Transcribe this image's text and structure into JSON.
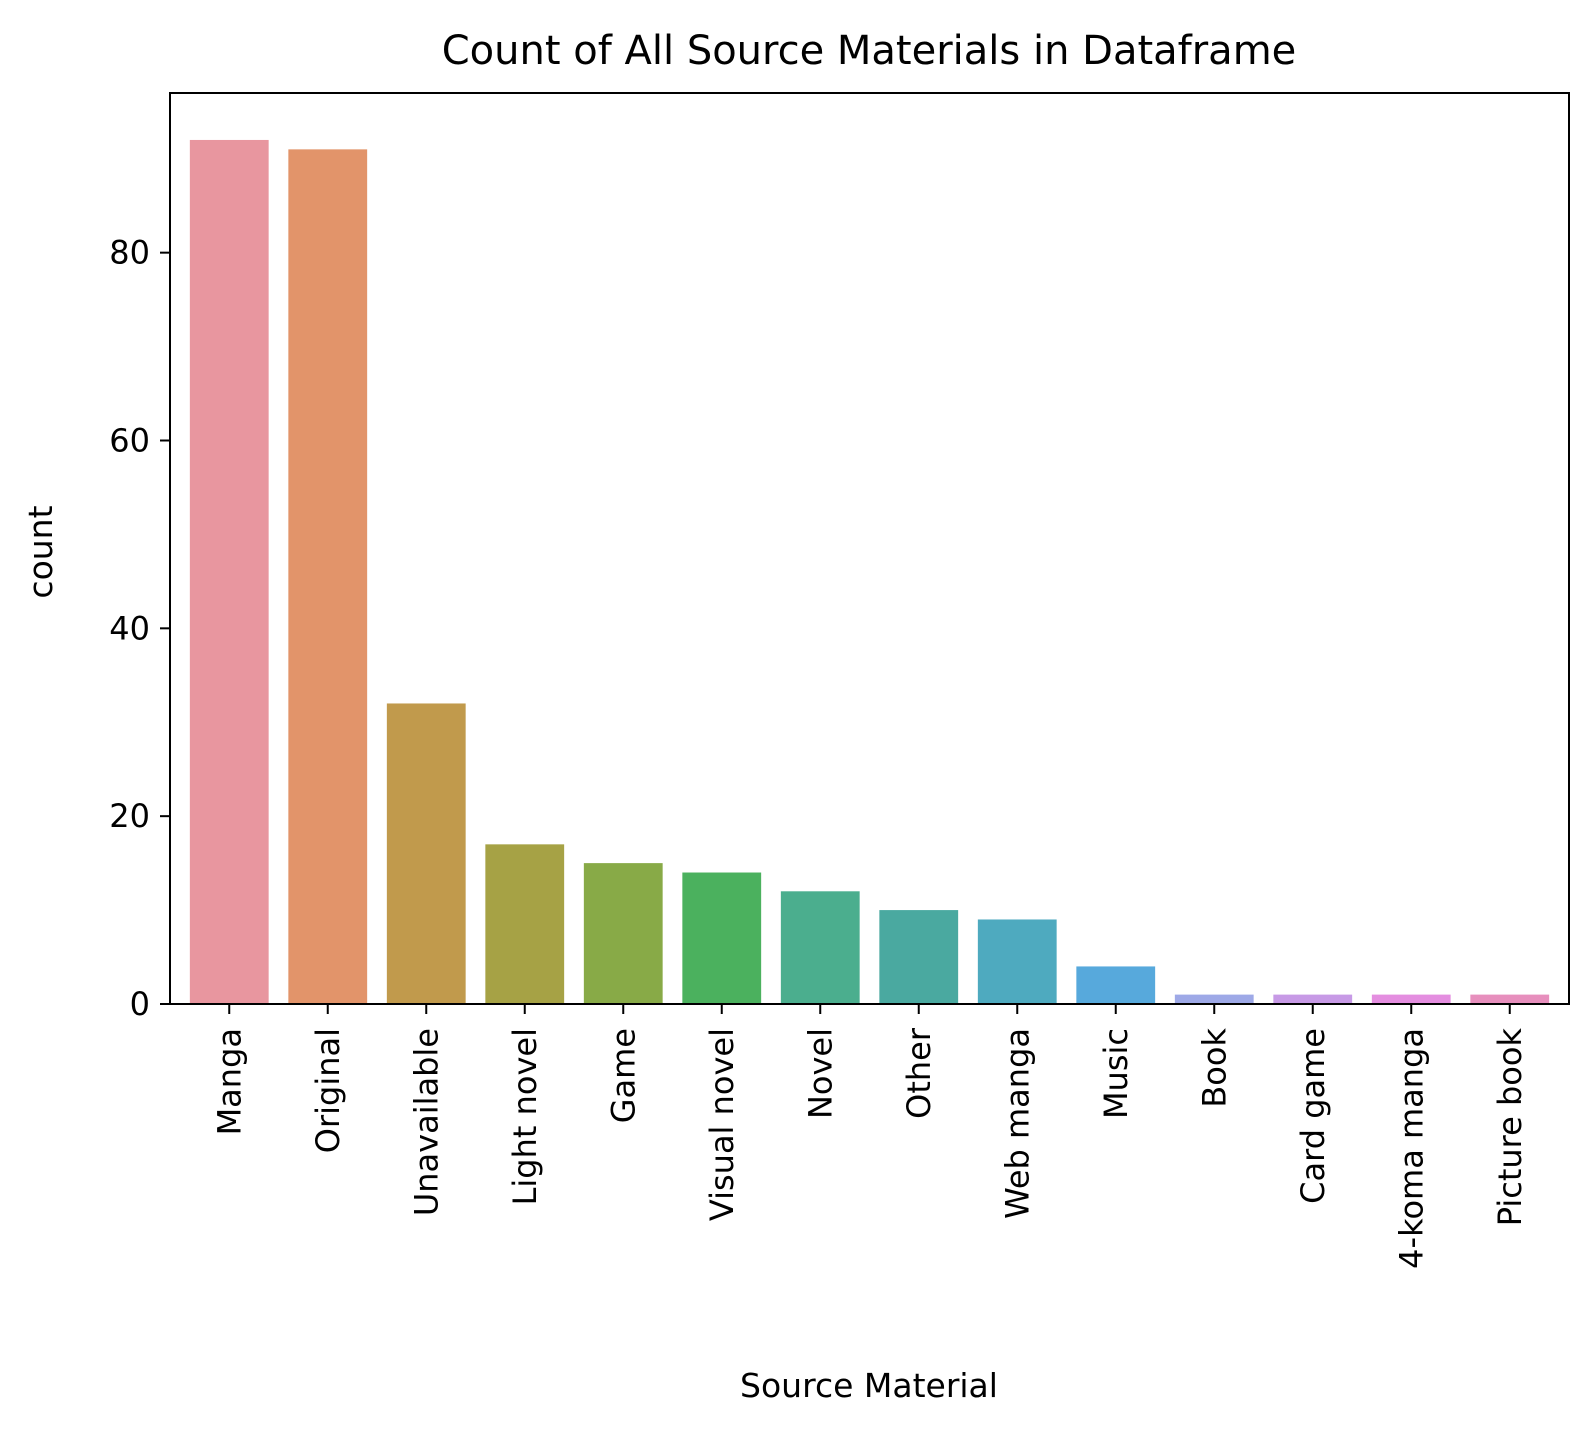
{
  "chart_data": {
    "type": "bar",
    "title": "Count of All Source Materials in Dataframe",
    "xlabel": "Source Material",
    "ylabel": "count",
    "categories": [
      "Manga",
      "Original",
      "Unavailable",
      "Light novel",
      "Game",
      "Visual novel",
      "Novel",
      "Other",
      "Web manga",
      "Music",
      "Book",
      "Card game",
      "4-koma manga",
      "Picture book"
    ],
    "values": [
      92,
      91,
      32,
      17,
      15,
      14,
      12,
      10,
      9,
      4,
      1,
      1,
      1,
      1
    ],
    "colors": [
      "#e8969f",
      "#e2946a",
      "#c19a4c",
      "#a6a245",
      "#88aa47",
      "#4bb15e",
      "#4bae8e",
      "#4aa9a0",
      "#4eaabf",
      "#57a9dc",
      "#9ea9e7",
      "#c79ae6",
      "#e48ee0",
      "#e78fbd"
    ],
    "ylim": [
      0,
      97
    ],
    "yticks": [
      0,
      20,
      40,
      60,
      80
    ],
    "grid": false,
    "legend": "none"
  }
}
